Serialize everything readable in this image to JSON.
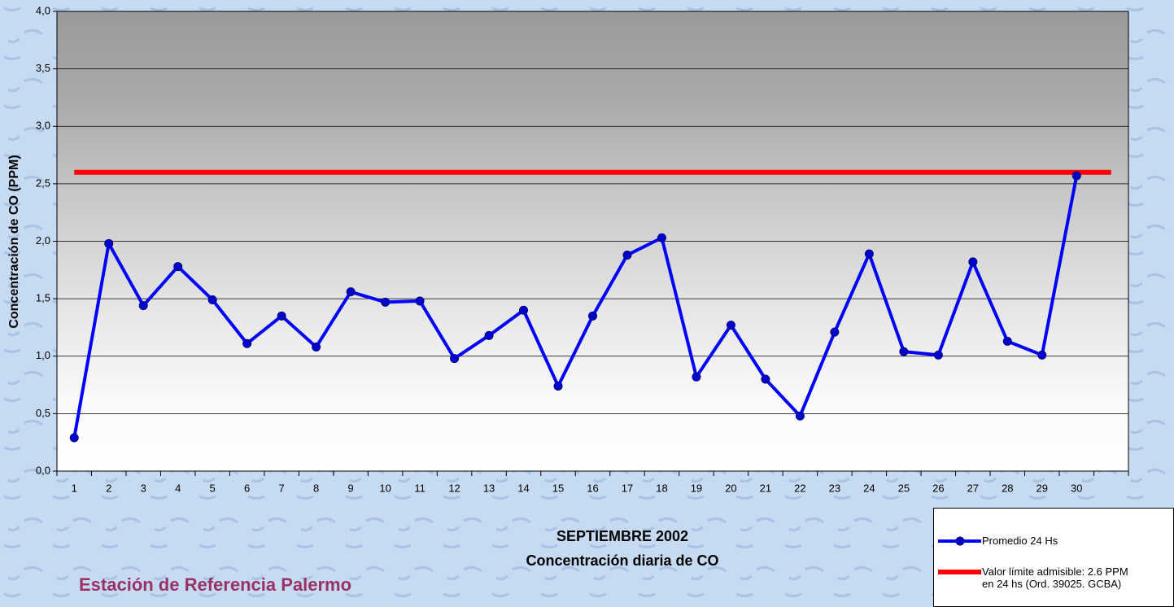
{
  "chart_data": {
    "type": "line",
    "title": "SEPTIEMBRE 2002",
    "subtitle": "Concentración diaria de CO",
    "y_label": "Concentración de CO (PPM)",
    "annotation": "Estación de Referencia Palermo",
    "categories": [
      "1",
      "2",
      "3",
      "4",
      "5",
      "6",
      "7",
      "8",
      "9",
      "10",
      "11",
      "12",
      "13",
      "14",
      "15",
      "16",
      "17",
      "18",
      "19",
      "20",
      "21",
      "22",
      "23",
      "24",
      "25",
      "26",
      "27",
      "28",
      "29",
      "30",
      null
    ],
    "series": [
      {
        "name": "Promedio 24 Hs",
        "color": "#0000ff",
        "values": [
          0.29,
          1.98,
          1.44,
          1.78,
          1.49,
          1.11,
          1.35,
          1.08,
          1.56,
          1.47,
          1.48,
          0.98,
          1.18,
          1.4,
          0.74,
          1.35,
          1.88,
          2.03,
          0.82,
          1.27,
          0.8,
          0.48,
          1.21,
          1.89,
          1.04,
          1.01,
          1.82,
          1.13,
          1.01,
          2.57,
          null
        ]
      },
      {
        "name": "Valor límite admisible: 2.6 PPM\nen 24 hs (Ord. 39025. GCBA)",
        "color": "#ff0000",
        "values": [
          2.6,
          2.6,
          2.6,
          2.6,
          2.6,
          2.6,
          2.6,
          2.6,
          2.6,
          2.6,
          2.6,
          2.6,
          2.6,
          2.6,
          2.6,
          2.6,
          2.6,
          2.6,
          2.6,
          2.6,
          2.6,
          2.6,
          2.6,
          2.6,
          2.6,
          2.6,
          2.6,
          2.6,
          2.6,
          2.6,
          2.6
        ]
      }
    ],
    "ylim": [
      0,
      4
    ],
    "yticks": [
      {
        "value": 0,
        "label": "0,0"
      },
      {
        "value": 0.5,
        "label": "0,5"
      },
      {
        "value": 1,
        "label": "1,0"
      },
      {
        "value": 1.5,
        "label": "1,5"
      },
      {
        "value": 2,
        "label": "2,0"
      },
      {
        "value": 2.5,
        "label": "2,5"
      },
      {
        "value": 3,
        "label": "3,0"
      },
      {
        "value": 3.5,
        "label": "3,5"
      },
      {
        "value": 4,
        "label": "4,0"
      }
    ],
    "grid": true
  }
}
